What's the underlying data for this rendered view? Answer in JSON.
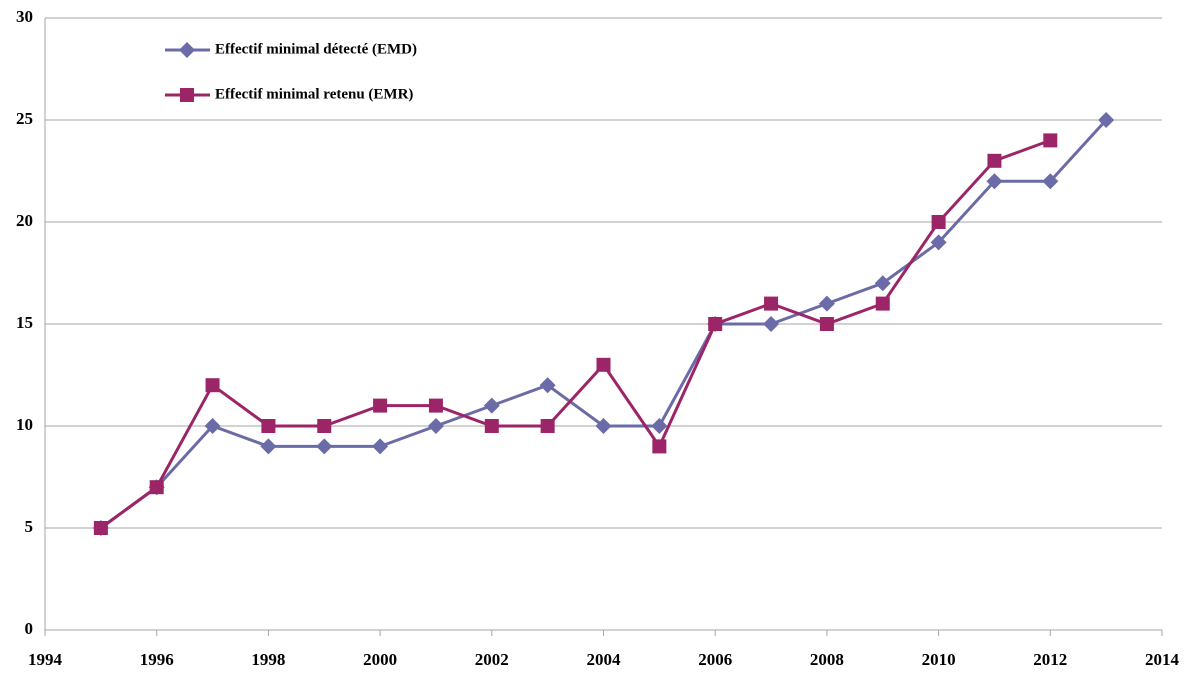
{
  "chart_data": {
    "type": "line",
    "x": [
      1995,
      1996,
      1997,
      1998,
      1999,
      2000,
      2001,
      2002,
      2003,
      2004,
      2005,
      2006,
      2007,
      2008,
      2009,
      2010,
      2011,
      2012,
      2013
    ],
    "series": [
      {
        "name": "Effectif minimal détecté (EMD)",
        "color": "#6b6ba8",
        "marker": "diamond",
        "values": [
          5,
          7,
          10,
          9,
          9,
          9,
          10,
          11,
          12,
          10,
          10,
          15,
          15,
          16,
          17,
          19,
          22,
          22,
          25
        ]
      },
      {
        "name": "Effectif minimal retenu (EMR)",
        "color": "#9b2566",
        "marker": "square",
        "values": [
          5,
          7,
          12,
          10,
          10,
          11,
          11,
          10,
          10,
          13,
          9,
          15,
          16,
          15,
          16,
          20,
          23,
          24,
          null
        ]
      }
    ],
    "xlim": [
      1994,
      2014
    ],
    "xticks": [
      1994,
      1996,
      1998,
      2000,
      2002,
      2004,
      2006,
      2008,
      2010,
      2012,
      2014
    ],
    "ylim": [
      0,
      30
    ],
    "yticks": [
      0,
      5,
      10,
      15,
      20,
      25,
      30
    ],
    "grid": true,
    "legend": "upper left"
  }
}
